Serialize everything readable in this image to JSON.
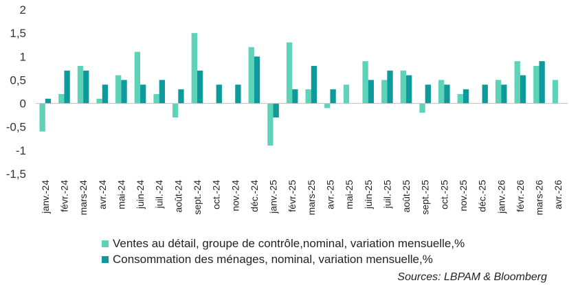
{
  "chart_data": {
    "type": "bar",
    "categories": [
      "janv.-24",
      "févr.-24",
      "mars-24",
      "avr.-24",
      "mai-24",
      "juin-24",
      "juil.-24",
      "août-24",
      "sept.-24",
      "oct.-24",
      "nov.-24",
      "déc.-24",
      "janv.-25",
      "févr.-25",
      "mars-25",
      "avr.-25",
      "mai-25",
      "juin-25",
      "juil.-25",
      "août-25",
      "sept.-25",
      "oct.-25",
      "nov.-25",
      "déc.-25",
      "janv.-26",
      "févr.-26",
      "mars-26",
      "avr.-26"
    ],
    "series": [
      {
        "name": "Ventes au détail, groupe de contrôle,nominal, variation mensuelle,%",
        "color": "#5dd3b8",
        "values": [
          -0.6,
          0.2,
          0.8,
          0.1,
          0.6,
          1.1,
          0.2,
          -0.3,
          1.5,
          null,
          null,
          1.2,
          -0.9,
          1.3,
          0.3,
          -0.1,
          0.4,
          0.9,
          0.5,
          0.7,
          -0.2,
          0.5,
          0.2,
          null,
          0.5,
          0.9,
          0.8,
          0.5
        ]
      },
      {
        "name": "Consommation des ménages, nominal, variation mensuelle,%",
        "color": "#0e9a9a",
        "values": [
          0.1,
          0.7,
          0.7,
          0.4,
          0.5,
          0.4,
          0.5,
          0.3,
          0.7,
          0.4,
          0.4,
          1.0,
          -0.3,
          0.3,
          0.8,
          0.3,
          null,
          0.5,
          0.7,
          0.6,
          0.4,
          0.4,
          0.3,
          0.4,
          0.4,
          0.6,
          0.9,
          null
        ]
      }
    ],
    "ylim": [
      -1.5,
      2
    ],
    "yticks": [
      -1.5,
      -1,
      -0.5,
      0,
      0.5,
      1,
      1.5,
      2
    ],
    "ytick_labels": [
      "-1,5",
      "-1",
      "-0,5",
      "0",
      "0,5",
      "1",
      "1,5",
      "2"
    ],
    "grid": false,
    "legend_position": "bottom"
  },
  "source": "Sources: LBPAM & Bloomberg"
}
